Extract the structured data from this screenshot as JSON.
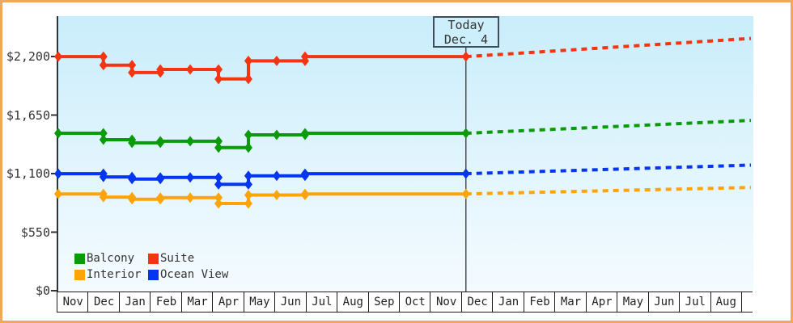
{
  "window": {
    "border_color": "#f0a85c",
    "background_color": "#ffffff"
  },
  "chart_data": {
    "type": "line",
    "title": "",
    "grid": false,
    "plot_background_gradient": {
      "top": "#c9edfb",
      "bottom": "#f4fbff"
    },
    "axis_color": "#2e3436",
    "y_axis": {
      "ylim": [
        0,
        2200
      ],
      "ticks": [
        {
          "label": "$0",
          "value": 0
        },
        {
          "label": "$550",
          "value": 550
        },
        {
          "label": "$1,100",
          "value": 1100
        },
        {
          "label": "$1,650",
          "value": 1650
        },
        {
          "label": "$2,200",
          "value": 2200
        }
      ]
    },
    "x_axis": {
      "labels": [
        "Nov",
        "Dec",
        "Jan",
        "Feb",
        "Mar",
        "Apr",
        "May",
        "Jun",
        "Jul",
        "Aug",
        "Sep",
        "Oct",
        "Nov",
        "Dec",
        "Jan",
        "Feb",
        "Mar",
        "Apr",
        "May",
        "Jun",
        "Jul",
        "Aug"
      ]
    },
    "today_marker": {
      "label_line1": "Today",
      "label_line2": "Dec. 4",
      "month_position": 13.1,
      "line_color": "#4d4d4d",
      "box_border_color": "#3e4e58"
    },
    "forecast_style": "dotted",
    "series": [
      {
        "name": "Suite",
        "color": "#f43511",
        "points": [
          [
            0,
            2199
          ],
          [
            1.45,
            2199
          ],
          [
            1.45,
            2119
          ],
          [
            2.37,
            2119
          ],
          [
            2.37,
            2049
          ],
          [
            3.28,
            2049
          ],
          [
            3.28,
            2079
          ],
          [
            4.24,
            2079
          ],
          [
            5.15,
            2079
          ],
          [
            5.15,
            1989
          ],
          [
            6.11,
            1989
          ],
          [
            6.11,
            2159
          ],
          [
            7.02,
            2159
          ],
          [
            7.93,
            2159
          ],
          [
            7.93,
            2199
          ],
          [
            13.1,
            2199
          ]
        ],
        "forecast_end_value": 2370
      },
      {
        "name": "Balcony",
        "color": "#0a9a0a",
        "points": [
          [
            0,
            1479
          ],
          [
            1.45,
            1479
          ],
          [
            1.45,
            1419
          ],
          [
            2.37,
            1419
          ],
          [
            2.37,
            1389
          ],
          [
            3.28,
            1389
          ],
          [
            3.28,
            1404
          ],
          [
            4.24,
            1404
          ],
          [
            5.15,
            1404
          ],
          [
            5.15,
            1344
          ],
          [
            6.11,
            1344
          ],
          [
            6.11,
            1464
          ],
          [
            7.02,
            1464
          ],
          [
            7.93,
            1464
          ],
          [
            7.93,
            1479
          ],
          [
            13.1,
            1479
          ]
        ],
        "forecast_end_value": 1600
      },
      {
        "name": "Ocean View",
        "color": "#0535f0",
        "points": [
          [
            0,
            1099
          ],
          [
            1.45,
            1099
          ],
          [
            1.45,
            1069
          ],
          [
            2.37,
            1069
          ],
          [
            2.37,
            1049
          ],
          [
            3.28,
            1049
          ],
          [
            3.28,
            1064
          ],
          [
            4.24,
            1064
          ],
          [
            5.15,
            1064
          ],
          [
            5.15,
            999
          ],
          [
            6.11,
            999
          ],
          [
            6.11,
            1079
          ],
          [
            7.02,
            1079
          ],
          [
            7.93,
            1079
          ],
          [
            7.93,
            1099
          ],
          [
            13.1,
            1099
          ]
        ],
        "forecast_end_value": 1180
      },
      {
        "name": "Interior",
        "color": "#ffa408",
        "points": [
          [
            0,
            909
          ],
          [
            1.45,
            909
          ],
          [
            1.45,
            879
          ],
          [
            2.37,
            879
          ],
          [
            2.37,
            859
          ],
          [
            3.28,
            859
          ],
          [
            3.28,
            874
          ],
          [
            4.24,
            874
          ],
          [
            5.15,
            874
          ],
          [
            5.15,
            819
          ],
          [
            6.11,
            819
          ],
          [
            6.11,
            899
          ],
          [
            7.02,
            899
          ],
          [
            7.93,
            899
          ],
          [
            7.93,
            909
          ],
          [
            13.1,
            909
          ]
        ],
        "forecast_end_value": 970
      }
    ],
    "legend": {
      "position": "bottom-left",
      "items": [
        {
          "label": "Balcony",
          "color": "#0a9a0a"
        },
        {
          "label": "Suite",
          "color": "#f43511"
        },
        {
          "label": "Interior",
          "color": "#ffa408"
        },
        {
          "label": "Ocean View",
          "color": "#0535f0"
        }
      ]
    }
  }
}
